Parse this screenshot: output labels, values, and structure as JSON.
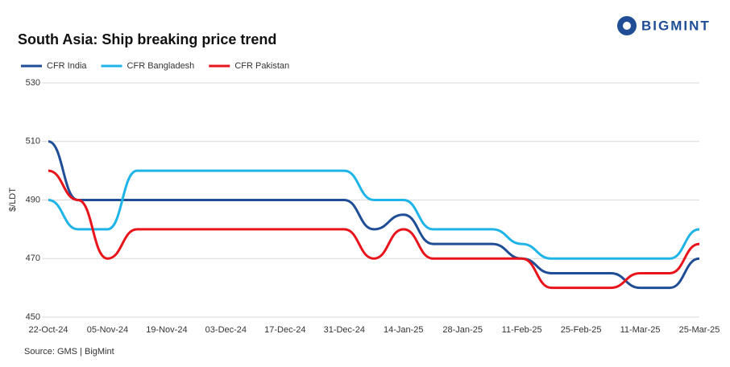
{
  "logo": "BIGMINT",
  "chart_data": {
    "type": "line",
    "title": "South Asia: Ship breaking  price trend",
    "y_label": "$/LDT",
    "source": "Source: GMS | BigMint",
    "categories": [
      "22-Oct-24",
      null,
      "05-Nov-24",
      null,
      "19-Nov-24",
      null,
      "03-Dec-24",
      null,
      "17-Dec-24",
      null,
      "31-Dec-24",
      null,
      "14-Jan-25",
      null,
      "28-Jan-25",
      null,
      "11-Feb-25",
      null,
      "25-Feb-25",
      null,
      "11-Mar-25",
      null,
      "25-Mar-25"
    ],
    "series": [
      {
        "name": "CFR India",
        "color": "#1f4e96",
        "values": [
          510,
          490,
          490,
          490,
          490,
          490,
          490,
          490,
          490,
          490,
          490,
          480,
          485,
          475,
          475,
          475,
          470,
          465,
          465,
          465,
          460,
          460,
          470
        ]
      },
      {
        "name": "CFR Bangladesh",
        "color": "#1fb4e8",
        "values": [
          490,
          480,
          480,
          500,
          500,
          500,
          500,
          500,
          500,
          500,
          500,
          490,
          490,
          480,
          480,
          480,
          475,
          470,
          470,
          470,
          470,
          470,
          480
        ]
      },
      {
        "name": "CFR Pakistan",
        "color": "#e8141b",
        "values": [
          500,
          490,
          470,
          480,
          480,
          480,
          480,
          480,
          480,
          480,
          480,
          470,
          480,
          470,
          470,
          470,
          470,
          460,
          460,
          460,
          465,
          465,
          475
        ]
      }
    ],
    "ylim": [
      450,
      530
    ],
    "yticks": [
      450,
      470,
      490,
      510,
      530
    ],
    "grid": true
  }
}
